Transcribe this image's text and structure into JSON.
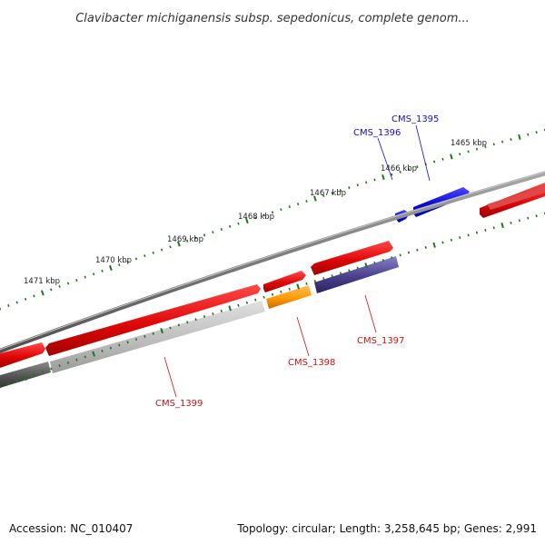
{
  "title": "Clavibacter michiganensis subsp. sepedonicus, complete genom...",
  "accession": "Accession: NC_010407",
  "stats": "Topology: circular; Length: 3,258,645 bp; Genes: 2,991",
  "ticks": [
    "1465 kbp",
    "1466 kbp",
    "1467 kbp",
    "1468 kbp",
    "1469 kbp",
    "1470 kbp",
    "1471 kbp"
  ],
  "genes": [
    {
      "id": "CMS_1395",
      "color": "#1010c8"
    },
    {
      "id": "CMS_1396",
      "color": "#1010c8"
    },
    {
      "id": "CMS_1397",
      "color": "#cc1111"
    },
    {
      "id": "CMS_1398",
      "color": "#cc1111"
    },
    {
      "id": "CMS_1399",
      "color": "#cc1111"
    }
  ],
  "colors": {
    "tick_marks": "#1a7a1a",
    "backbone": "#7a7a7a",
    "forward_cds": "#e01010",
    "reverse_cds_blue": "#1010e0",
    "orange_feature": "#ff9900",
    "purple_feature": "#4a3f8a",
    "grey_feature": "#bdbdbd",
    "dark_grey_feature": "#555555",
    "label_red": "#cc1111",
    "label_blue": "#1010c8"
  }
}
